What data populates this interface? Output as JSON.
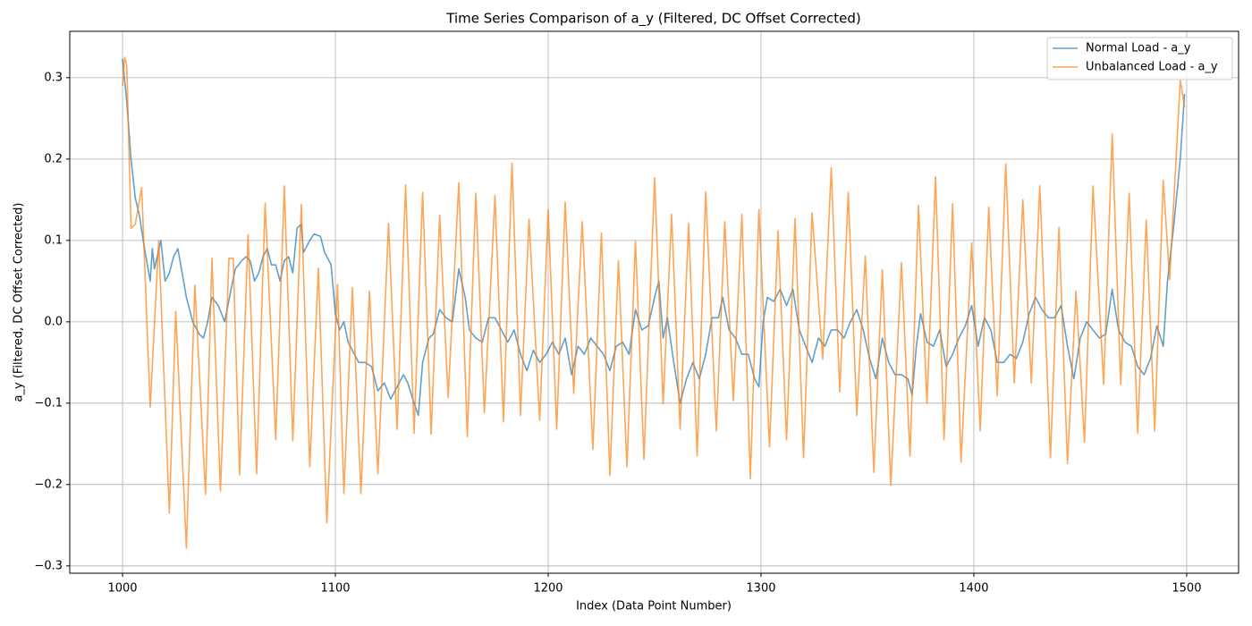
{
  "chart_data": {
    "type": "line",
    "title": "Time Series Comparison of a_y (Filtered, DC Offset Corrected)",
    "x_label": "Index (Data Point Number)",
    "y_label": "a_y (Filtered, DC Offset Corrected)",
    "xlim": [
      975.2,
      1524.4
    ],
    "ylim": [
      -0.309,
      0.357
    ],
    "xticks": [
      1000,
      1100,
      1200,
      1300,
      1400,
      1500
    ],
    "yticks": [
      {
        "value": -0.3,
        "label": "−0.3"
      },
      {
        "value": -0.2,
        "label": "−0.2"
      },
      {
        "value": -0.1,
        "label": "−0.1"
      },
      {
        "value": 0,
        "label": "0.0"
      },
      0.1,
      0.2,
      0.3
    ],
    "grid": true,
    "legend": "upper right",
    "series": [
      {
        "name": "Normal Load - a_y",
        "color": "#1f77b4",
        "x": [
          1000,
          1002,
          1004,
          1006,
          1008,
          1010,
          1013,
          1014,
          1015,
          1018,
          1020,
          1022,
          1024,
          1026,
          1028,
          1030,
          1033,
          1036,
          1038,
          1040,
          1042,
          1045,
          1048,
          1051,
          1053,
          1056,
          1058,
          1060,
          1062,
          1064,
          1066,
          1068,
          1070,
          1072,
          1074,
          1076,
          1078,
          1080,
          1082,
          1084,
          1085,
          1088,
          1090,
          1093,
          1095,
          1098,
          1100,
          1102,
          1104,
          1106,
          1109,
          1111,
          1114,
          1117,
          1120,
          1123,
          1126,
          1129,
          1132,
          1134,
          1137,
          1139,
          1141,
          1144,
          1146,
          1149,
          1152,
          1155,
          1158,
          1161,
          1163,
          1166,
          1169,
          1172,
          1175,
          1178,
          1181,
          1184,
          1187,
          1190,
          1193,
          1196,
          1199,
          1202,
          1205,
          1208,
          1211,
          1214,
          1217,
          1220,
          1223,
          1226,
          1229,
          1232,
          1235,
          1238,
          1241,
          1244,
          1247,
          1250,
          1252,
          1254,
          1256,
          1259,
          1262,
          1265,
          1268,
          1271,
          1274,
          1277,
          1280,
          1282,
          1285,
          1288,
          1291,
          1294,
          1297,
          1299,
          1301,
          1303,
          1306,
          1309,
          1312,
          1315,
          1318,
          1321,
          1324,
          1327,
          1330,
          1333,
          1336,
          1339,
          1342,
          1345,
          1348,
          1351,
          1354,
          1357,
          1360,
          1363,
          1366,
          1369,
          1371,
          1373,
          1375,
          1378,
          1381,
          1384,
          1387,
          1390,
          1393,
          1396,
          1399,
          1402,
          1405,
          1408,
          1411,
          1414,
          1417,
          1420,
          1423,
          1426,
          1429,
          1432,
          1435,
          1438,
          1441,
          1444,
          1447,
          1450,
          1453,
          1456,
          1459,
          1462,
          1465,
          1468,
          1471,
          1474,
          1477,
          1480,
          1483,
          1486,
          1489,
          1491,
          1494,
          1497,
          1499
        ],
        "values": [
          0.323,
          0.27,
          0.2,
          0.152,
          0.13,
          0.095,
          0.05,
          0.09,
          0.065,
          0.1,
          0.05,
          0.06,
          0.08,
          0.09,
          0.06,
          0.03,
          0.0,
          -0.015,
          -0.02,
          0.0,
          0.03,
          0.02,
          0.0,
          0.04,
          0.065,
          0.075,
          0.08,
          0.075,
          0.05,
          0.06,
          0.08,
          0.09,
          0.07,
          0.07,
          0.05,
          0.075,
          0.08,
          0.06,
          0.115,
          0.12,
          0.085,
          0.1,
          0.108,
          0.105,
          0.085,
          0.07,
          0.01,
          -0.01,
          0.0,
          -0.025,
          -0.04,
          -0.05,
          -0.05,
          -0.055,
          -0.085,
          -0.075,
          -0.095,
          -0.08,
          -0.065,
          -0.075,
          -0.1,
          -0.115,
          -0.05,
          -0.02,
          -0.015,
          0.015,
          0.005,
          0.0,
          0.065,
          0.03,
          -0.01,
          -0.02,
          -0.025,
          0.005,
          0.005,
          -0.01,
          -0.025,
          -0.01,
          -0.04,
          -0.06,
          -0.035,
          -0.05,
          -0.04,
          -0.025,
          -0.04,
          -0.02,
          -0.065,
          -0.03,
          -0.04,
          -0.02,
          -0.03,
          -0.04,
          -0.06,
          -0.03,
          -0.025,
          -0.04,
          0.015,
          -0.01,
          -0.005,
          0.03,
          0.05,
          -0.02,
          0.005,
          -0.05,
          -0.1,
          -0.07,
          -0.05,
          -0.07,
          -0.04,
          0.005,
          0.005,
          0.03,
          -0.01,
          -0.02,
          -0.04,
          -0.04,
          -0.07,
          -0.08,
          0.0,
          0.03,
          0.025,
          0.04,
          0.02,
          0.04,
          -0.01,
          -0.03,
          -0.05,
          -0.02,
          -0.03,
          -0.01,
          -0.01,
          -0.02,
          0.0,
          0.015,
          -0.01,
          -0.045,
          -0.07,
          -0.02,
          -0.05,
          -0.065,
          -0.065,
          -0.07,
          -0.09,
          -0.03,
          0.01,
          -0.025,
          -0.03,
          -0.01,
          -0.055,
          -0.04,
          -0.02,
          -0.005,
          0.02,
          -0.03,
          0.005,
          -0.01,
          -0.05,
          -0.05,
          -0.04,
          -0.045,
          -0.025,
          0.01,
          0.03,
          0.015,
          0.005,
          0.005,
          0.02,
          -0.03,
          -0.07,
          -0.02,
          0.0,
          -0.01,
          -0.02,
          -0.015,
          0.04,
          -0.01,
          -0.025,
          -0.03,
          -0.055,
          -0.065,
          -0.045,
          -0.005,
          -0.03,
          0.05,
          0.12,
          0.2,
          0.28
        ]
      },
      {
        "name": "Unbalanced Load - a_y",
        "color": "#ff7f0e",
        "x": [
          1000,
          1001,
          1002,
          1004,
          1006,
          1009,
          1013,
          1017,
          1022,
          1025,
          1030,
          1034,
          1039,
          1042,
          1046,
          1050,
          1052,
          1055,
          1059,
          1063,
          1067,
          1072,
          1076,
          1080,
          1084,
          1088,
          1092,
          1096,
          1101,
          1104,
          1108,
          1112,
          1116,
          1120,
          1125,
          1129,
          1133,
          1137,
          1141,
          1145,
          1149,
          1153,
          1158,
          1162,
          1166,
          1170,
          1175,
          1179,
          1183,
          1187,
          1191,
          1196,
          1200,
          1204,
          1208,
          1212,
          1216,
          1221,
          1225,
          1229,
          1233,
          1237,
          1241,
          1245,
          1250,
          1254,
          1258,
          1262,
          1266,
          1270,
          1274,
          1279,
          1283,
          1287,
          1291,
          1295,
          1299,
          1304,
          1308,
          1312,
          1316,
          1320,
          1324,
          1329,
          1333,
          1337,
          1341,
          1345,
          1349,
          1353,
          1357,
          1361,
          1366,
          1370,
          1374,
          1378,
          1382,
          1386,
          1390,
          1394,
          1399,
          1403,
          1407,
          1411,
          1415,
          1419,
          1423,
          1427,
          1431,
          1436,
          1440,
          1444,
          1448,
          1452,
          1456,
          1461,
          1465,
          1469,
          1473,
          1477,
          1481,
          1485,
          1489,
          1492,
          1497,
          1499
        ],
        "values": [
          0.29,
          0.325,
          0.315,
          0.115,
          0.12,
          0.165,
          -0.105,
          0.1,
          -0.235,
          0.013,
          -0.278,
          0.045,
          -0.212,
          0.078,
          -0.208,
          0.078,
          0.078,
          -0.188,
          0.107,
          -0.187,
          0.146,
          -0.145,
          0.167,
          -0.146,
          0.144,
          -0.178,
          0.066,
          -0.247,
          0.046,
          -0.211,
          0.042,
          -0.211,
          0.038,
          -0.187,
          0.121,
          -0.132,
          0.168,
          -0.137,
          0.159,
          -0.138,
          0.131,
          -0.093,
          0.171,
          -0.141,
          0.158,
          -0.112,
          0.155,
          -0.123,
          0.195,
          -0.115,
          0.126,
          -0.121,
          0.138,
          -0.132,
          0.147,
          -0.088,
          0.123,
          -0.157,
          0.109,
          -0.189,
          0.075,
          -0.178,
          0.099,
          -0.169,
          0.177,
          -0.101,
          0.132,
          -0.132,
          0.121,
          -0.165,
          0.16,
          -0.134,
          0.123,
          -0.097,
          0.132,
          -0.193,
          0.138,
          -0.154,
          0.112,
          -0.145,
          0.127,
          -0.167,
          0.134,
          -0.046,
          0.189,
          -0.086,
          0.159,
          -0.115,
          0.081,
          -0.185,
          0.064,
          -0.201,
          0.073,
          -0.165,
          0.143,
          -0.1,
          0.178,
          -0.145,
          0.145,
          -0.172,
          0.097,
          -0.134,
          0.141,
          -0.091,
          0.194,
          -0.075,
          0.15,
          -0.075,
          0.167,
          -0.167,
          0.116,
          -0.174,
          0.038,
          -0.148,
          0.167,
          -0.077,
          0.231,
          -0.077,
          0.158,
          -0.137,
          0.125,
          -0.134,
          0.174,
          0.052,
          0.297,
          0.264
        ]
      }
    ]
  }
}
